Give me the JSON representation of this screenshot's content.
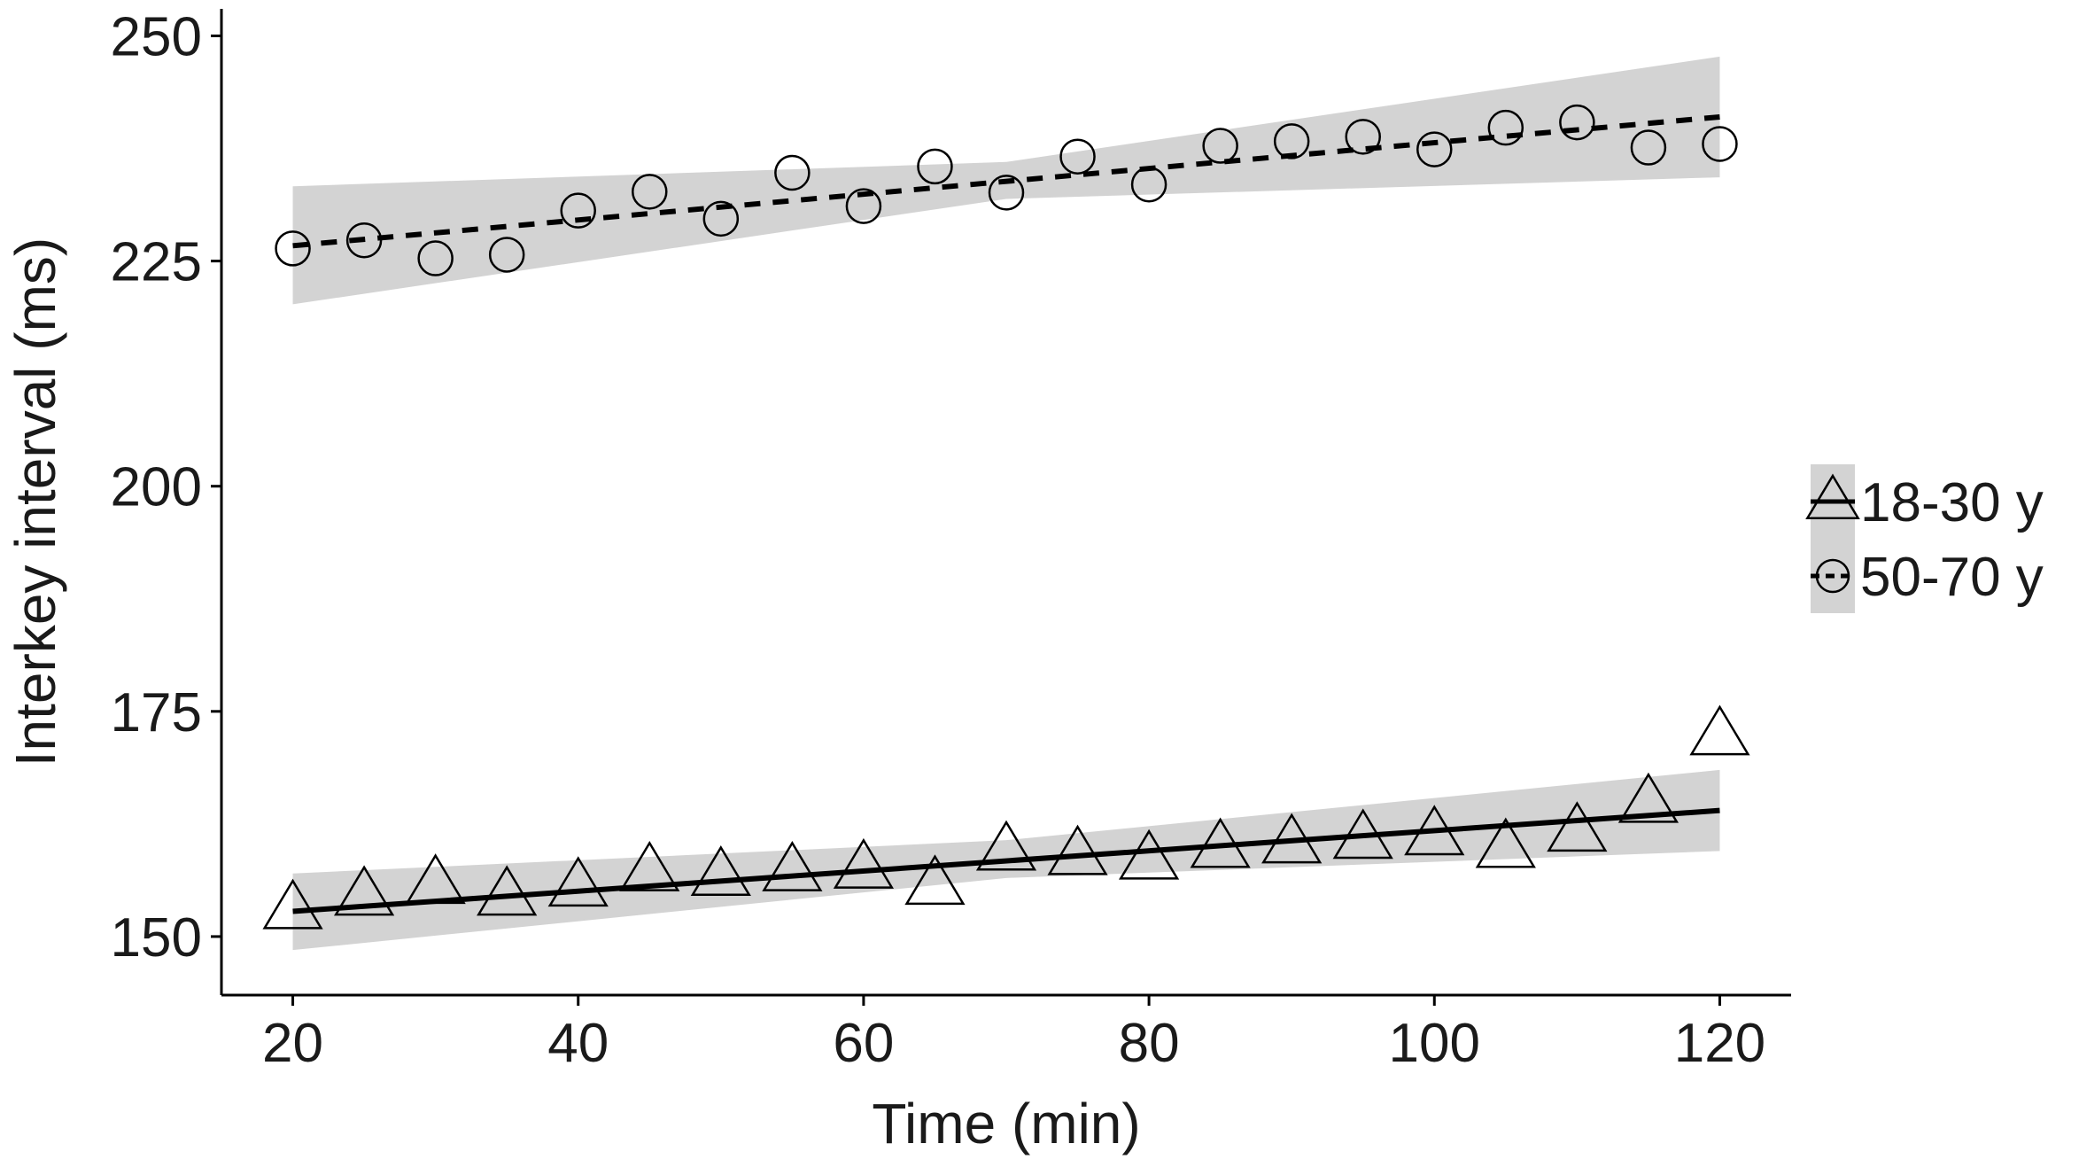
{
  "chart_data": {
    "type": "scatter",
    "xlabel": "Time (min)",
    "ylabel": "Interkey interval (ms)",
    "xlim": [
      15,
      125
    ],
    "ylim": [
      143.5,
      253
    ],
    "xticks": [
      20,
      40,
      60,
      80,
      100,
      120
    ],
    "yticks": [
      150,
      175,
      200,
      225,
      250
    ],
    "grid": false,
    "legend_position": "right",
    "series": [
      {
        "name": "18-30 y",
        "marker": "triangle",
        "line_style": "solid",
        "x": [
          20,
          25,
          30,
          35,
          40,
          45,
          50,
          55,
          60,
          65,
          70,
          75,
          80,
          85,
          90,
          95,
          100,
          105,
          110,
          115,
          120
        ],
        "y": [
          153,
          154.5,
          155.8,
          154.5,
          155.5,
          157.2,
          156.7,
          157.2,
          157.5,
          155.7,
          159.5,
          159,
          158.5,
          159.8,
          160.3,
          160.8,
          161.2,
          159.8,
          161.6,
          164.8,
          172.3
        ],
        "fit": {
          "x": [
            20,
            120
          ],
          "y": [
            152.8,
            164
          ]
        },
        "ci": {
          "x": [
            20,
            70,
            120
          ],
          "lower": [
            148.5,
            156.5,
            159.5
          ],
          "upper": [
            157,
            160.7,
            168.5
          ]
        }
      },
      {
        "name": "50-70 y",
        "marker": "circle",
        "line_style": "dashed",
        "x": [
          20,
          25,
          30,
          35,
          40,
          45,
          50,
          55,
          60,
          65,
          70,
          75,
          80,
          85,
          90,
          95,
          100,
          105,
          110,
          115,
          120
        ],
        "y": [
          226.4,
          227.3,
          225.3,
          225.7,
          230.6,
          232.7,
          229.7,
          234.8,
          231.1,
          235.5,
          232.6,
          236.6,
          233.5,
          237.8,
          238.3,
          238.8,
          237.4,
          239.8,
          240.4,
          237.6,
          238
        ],
        "fit": {
          "x": [
            20,
            120
          ],
          "y": [
            226.7,
            241
          ]
        },
        "ci": {
          "x": [
            20,
            70,
            120
          ],
          "lower": [
            220.2,
            231.9,
            234.3
          ],
          "upper": [
            233.3,
            236,
            247.7
          ]
        }
      }
    ]
  },
  "colors": {
    "ribbon": "#d3d3d3",
    "ink": "#000000",
    "marker_fill": "#ffffff"
  }
}
